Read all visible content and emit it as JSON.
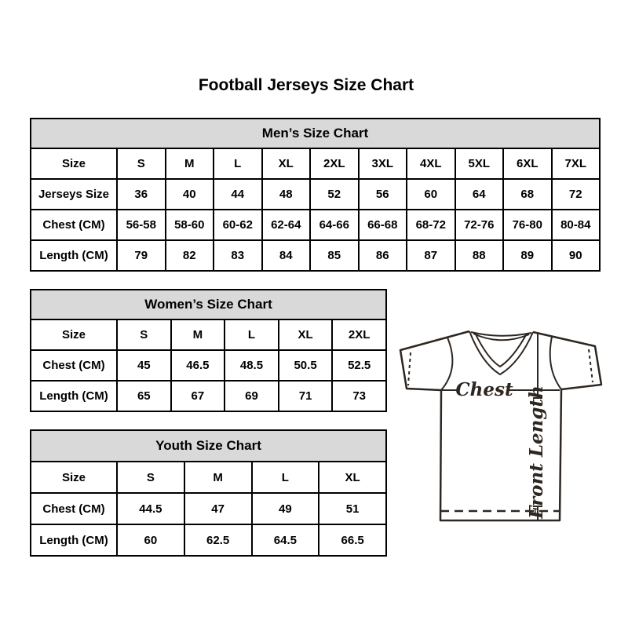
{
  "page": {
    "title": "Football Jerseys Size Chart"
  },
  "tables": [
    {
      "id": "mens",
      "title": "Men’s Size Chart",
      "rows": [
        [
          "Size",
          "S",
          "M",
          "L",
          "XL",
          "2XL",
          "3XL",
          "4XL",
          "5XL",
          "6XL",
          "7XL"
        ],
        [
          "Jerseys Size",
          "36",
          "40",
          "44",
          "48",
          "52",
          "56",
          "60",
          "64",
          "68",
          "72"
        ],
        [
          "Chest (CM)",
          "56-58",
          "58-60",
          "60-62",
          "62-64",
          "64-66",
          "66-68",
          "68-72",
          "72-76",
          "76-80",
          "80-84"
        ],
        [
          "Length (CM)",
          "79",
          "82",
          "83",
          "84",
          "85",
          "86",
          "87",
          "88",
          "89",
          "90"
        ]
      ]
    },
    {
      "id": "womens",
      "title": "Women’s Size Chart",
      "rows": [
        [
          "Size",
          "S",
          "M",
          "L",
          "XL",
          "2XL"
        ],
        [
          "Chest (CM)",
          "45",
          "46.5",
          "48.5",
          "50.5",
          "52.5"
        ],
        [
          "Length (CM)",
          "65",
          "67",
          "69",
          "71",
          "73"
        ]
      ]
    },
    {
      "id": "youth",
      "title": "Youth Size Chart",
      "rows": [
        [
          "Size",
          "S",
          "M",
          "L",
          "XL"
        ],
        [
          "Chest (CM)",
          "44.5",
          "47",
          "49",
          "51"
        ],
        [
          "Length (CM)",
          "60",
          "62.5",
          "64.5",
          "66.5"
        ]
      ]
    }
  ],
  "diagram": {
    "chest_label": "Chest",
    "front_length_label": "Front Length"
  },
  "colors": {
    "header_bg": "#d9d9d9",
    "table_border": "#000000",
    "jersey_stroke": "#2e2620"
  }
}
